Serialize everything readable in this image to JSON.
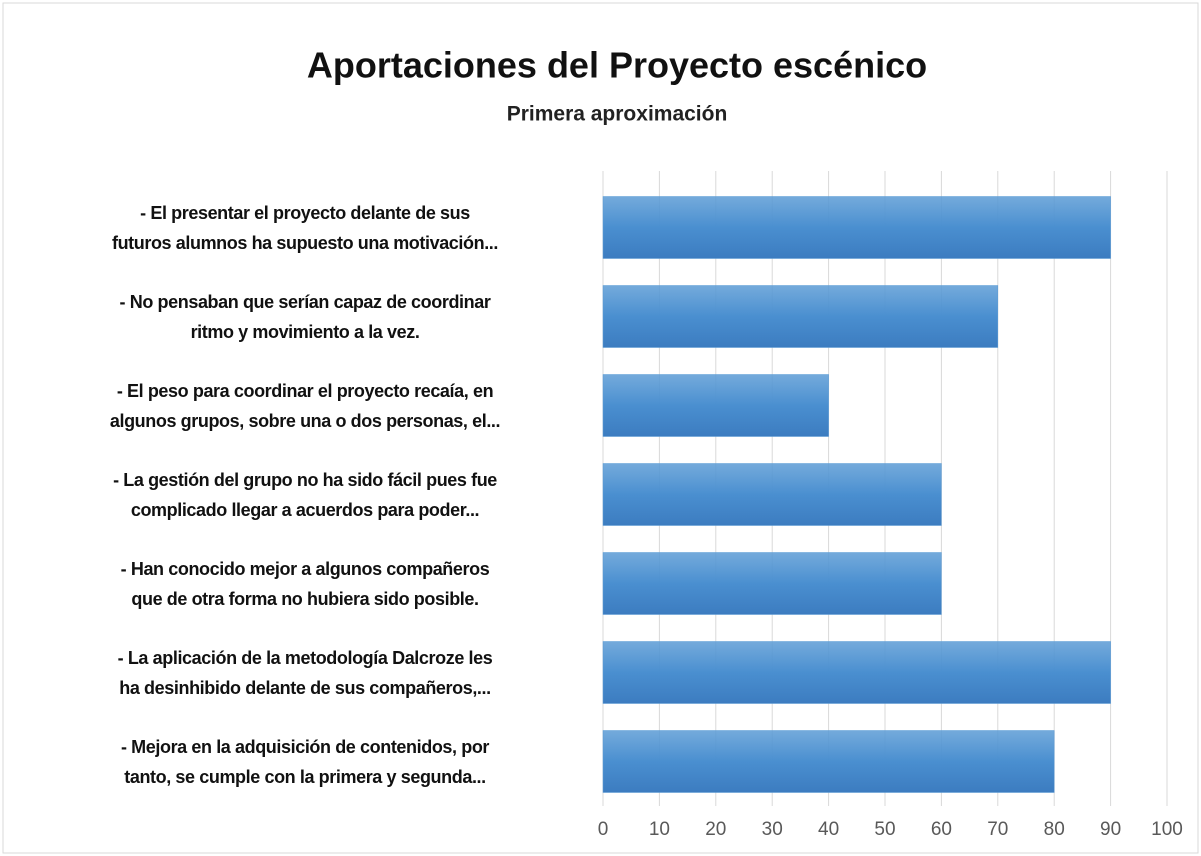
{
  "chart_data": {
    "type": "hbar",
    "title": "Aportaciones del Proyecto escénico",
    "subtitle": "Primera aproximación",
    "categories": [
      "-   El presentar el proyecto delante de sus\nfuturos alumnos ha supuesto una motivación...",
      "-   No pensaban que serían capaz de coordinar\nritmo y movimiento a la vez.",
      "-   El peso para coordinar el proyecto recaía, en\nalgunos grupos, sobre una o dos personas, el...",
      "-   La gestión del grupo no ha sido fácil pues fue\ncomplicado llegar a acuerdos para poder...",
      "-   Han conocido mejor a algunos compañeros\nque de otra forma no hubiera sido posible.",
      "-   La aplicación de la metodología Dalcroze les\nha desinhibido delante de sus compañeros,...",
      "-   Mejora en la adquisición de contenidos, por\ntanto, se cumple con la primera y segunda..."
    ],
    "values": [
      90,
      70,
      40,
      60,
      60,
      90,
      80
    ],
    "color": "#5b9bd5",
    "xlim": [
      0,
      100
    ],
    "xticks": [
      0,
      10,
      20,
      30,
      40,
      50,
      60,
      70,
      80,
      90,
      100
    ],
    "grid": true
  }
}
